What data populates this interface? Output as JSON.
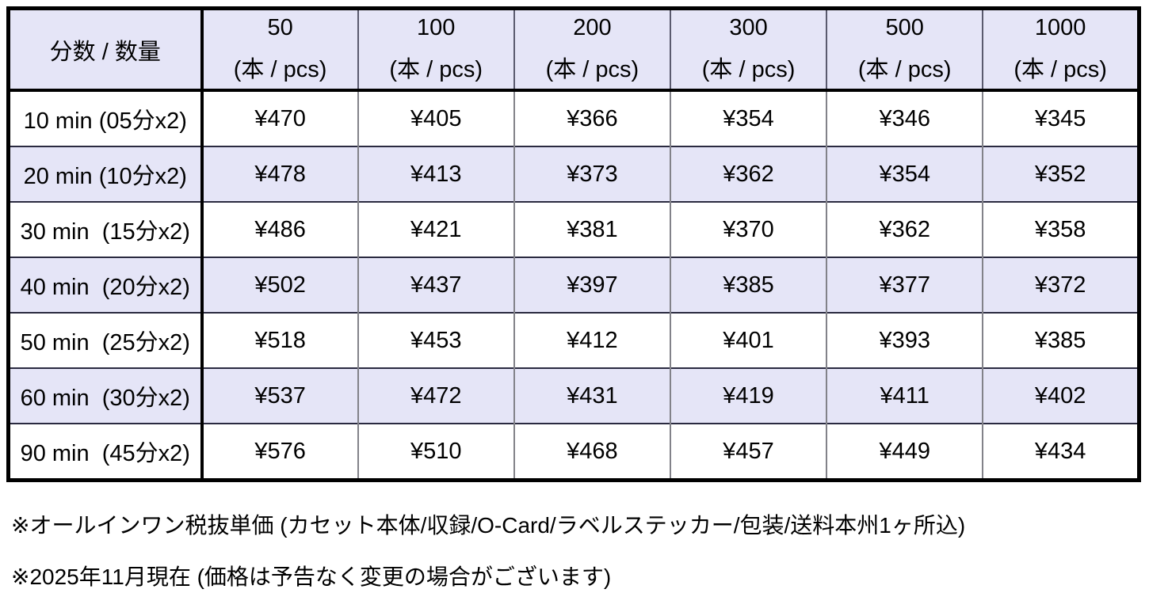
{
  "colors": {
    "stripe_lavender": "#e5e5f7",
    "outer_border": "#000000",
    "inner_vertical_line": "#828289",
    "inner_horizontal_line": "#2a2a40"
  },
  "table": {
    "corner_label": "分数 / 数量",
    "unit_label": "(本 / pcs)",
    "quantities": [
      "50",
      "100",
      "200",
      "300",
      "500",
      "1000"
    ],
    "rows": [
      {
        "label": "10 min (05分x2)",
        "striped": false,
        "prices": [
          "¥470",
          "¥405",
          "¥366",
          "¥354",
          "¥346",
          "¥345"
        ]
      },
      {
        "label": "20 min (10分x2)",
        "striped": true,
        "prices": [
          "¥478",
          "¥413",
          "¥373",
          "¥362",
          "¥354",
          "¥352"
        ]
      },
      {
        "label": "30 min  (15分x2)",
        "striped": false,
        "prices": [
          "¥486",
          "¥421",
          "¥381",
          "¥370",
          "¥362",
          "¥358"
        ]
      },
      {
        "label": "40 min  (20分x2)",
        "striped": true,
        "prices": [
          "¥502",
          "¥437",
          "¥397",
          "¥385",
          "¥377",
          "¥372"
        ]
      },
      {
        "label": "50 min  (25分x2)",
        "striped": false,
        "prices": [
          "¥518",
          "¥453",
          "¥412",
          "¥401",
          "¥393",
          "¥385"
        ]
      },
      {
        "label": "60 min  (30分x2)",
        "striped": true,
        "prices": [
          "¥537",
          "¥472",
          "¥431",
          "¥419",
          "¥411",
          "¥402"
        ]
      },
      {
        "label": "90 min  (45分x2)",
        "striped": false,
        "prices": [
          "¥576",
          "¥510",
          "¥468",
          "¥457",
          "¥449",
          "¥434"
        ]
      }
    ]
  },
  "footnotes": [
    "※オールインワン税抜単価 (カセット本体/収録/O-Card/ラベルステッカー/包装/送料本州1ヶ所込)",
    "※2025年11月現在 (価格は予告なく変更の場合がございます)"
  ]
}
